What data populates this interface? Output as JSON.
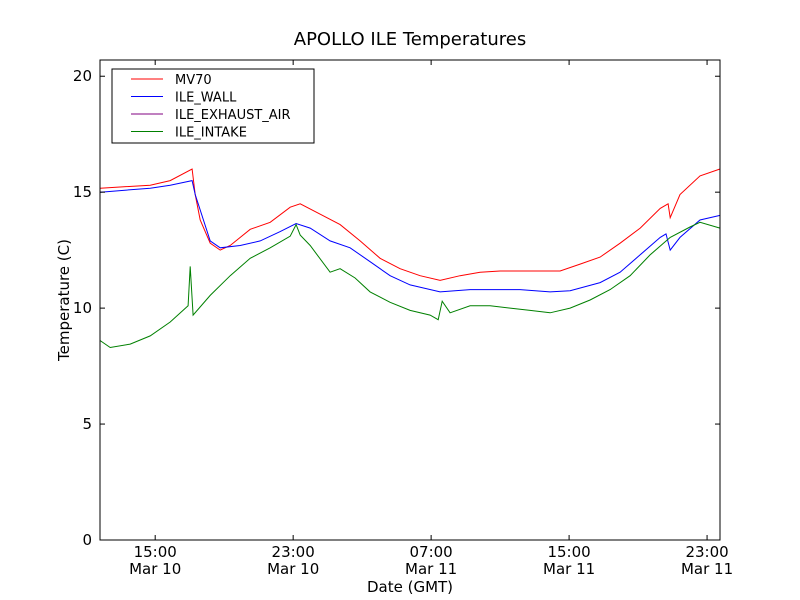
{
  "chart_data": {
    "type": "line",
    "title": "APOLLO ILE Temperatures",
    "xlabel": "Date (GMT)",
    "ylabel": "Temperature (C)",
    "x_units": "hours since Mar 10 00:00 GMT",
    "xlim": [
      11.8,
      47.75
    ],
    "ylim": [
      0,
      20.7
    ],
    "grid": false,
    "legend_position": "top-left",
    "yticks": [
      {
        "value": 0,
        "label": "0"
      },
      {
        "value": 5,
        "label": "5"
      },
      {
        "value": 10,
        "label": "10"
      },
      {
        "value": 15,
        "label": "15"
      },
      {
        "value": 20,
        "label": "20"
      }
    ],
    "xticks": [
      {
        "value": 15,
        "time": "15:00",
        "date": "Mar 10"
      },
      {
        "value": 23,
        "time": "23:00",
        "date": "Mar 10"
      },
      {
        "value": 31,
        "time": "07:00",
        "date": "Mar 11"
      },
      {
        "value": 39,
        "time": "15:00",
        "date": "Mar 11"
      },
      {
        "value": 47,
        "time": "23:00",
        "date": "Mar 11"
      }
    ],
    "series": [
      {
        "name": "MV70",
        "color": "#ff0000",
        "x": [
          11.81,
          14.71,
          15.87,
          17.14,
          17.32,
          17.61,
          18.19,
          18.77,
          19.35,
          20.51,
          21.67,
          22.83,
          23.41,
          24.57,
          25.72,
          26.88,
          28.04,
          29.2,
          30.36,
          31.52,
          32.68,
          33.84,
          35.0,
          36.16,
          37.32,
          38.48,
          39.64,
          40.8,
          41.96,
          43.12,
          44.28,
          44.74,
          44.86,
          45.43,
          46.59,
          47.75
        ],
        "y": [
          15.17,
          15.3,
          15.5,
          16.0,
          14.9,
          13.8,
          12.8,
          12.5,
          12.7,
          13.4,
          13.7,
          14.35,
          14.5,
          14.05,
          13.6,
          12.9,
          12.15,
          11.7,
          11.4,
          11.2,
          11.4,
          11.55,
          11.6,
          11.6,
          11.6,
          11.6,
          11.9,
          12.2,
          12.8,
          13.45,
          14.3,
          14.5,
          13.9,
          14.9,
          15.7,
          16.0
        ]
      },
      {
        "name": "ILE_WALL",
        "color": "#0000ff",
        "x": [
          11.81,
          14.71,
          15.87,
          17.14,
          17.32,
          18.19,
          18.77,
          19.93,
          21.09,
          22.25,
          23.17,
          23.99,
          25.14,
          26.3,
          27.46,
          28.62,
          29.78,
          31.52,
          33.26,
          34.42,
          36.16,
          37.9,
          39.06,
          40.8,
          41.96,
          43.12,
          44.28,
          44.62,
          44.86,
          45.43,
          46.59,
          47.75
        ],
        "y": [
          15.0,
          15.17,
          15.3,
          15.5,
          14.9,
          12.9,
          12.6,
          12.7,
          12.9,
          13.3,
          13.65,
          13.45,
          12.9,
          12.6,
          12.0,
          11.4,
          11.0,
          10.7,
          10.8,
          10.8,
          10.8,
          10.7,
          10.75,
          11.1,
          11.55,
          12.3,
          13.05,
          13.2,
          12.5,
          13.05,
          13.8,
          14.0
        ]
      },
      {
        "name": "ILE_EXHAUST_AIR",
        "color": "#800080",
        "x": [],
        "y": []
      },
      {
        "name": "ILE_INTAKE",
        "color": "#008000",
        "x": [
          11.81,
          12.39,
          13.55,
          14.71,
          15.87,
          16.91,
          17.03,
          17.2,
          18.19,
          19.35,
          20.51,
          21.67,
          22.83,
          23.17,
          23.41,
          23.99,
          25.14,
          25.72,
          26.59,
          27.46,
          28.62,
          29.78,
          30.94,
          31.41,
          31.64,
          32.1,
          33.26,
          34.42,
          35.58,
          36.74,
          37.9,
          39.06,
          40.22,
          41.38,
          42.54,
          43.7,
          44.86,
          46.01,
          46.59,
          47.75
        ],
        "y": [
          8.6,
          8.3,
          8.45,
          8.8,
          9.4,
          10.1,
          11.8,
          9.7,
          10.55,
          11.4,
          12.15,
          12.6,
          13.1,
          13.6,
          13.15,
          12.7,
          11.55,
          11.7,
          11.3,
          10.7,
          10.25,
          9.9,
          9.7,
          9.5,
          10.3,
          9.8,
          10.1,
          10.1,
          10.0,
          9.9,
          9.8,
          10.0,
          10.35,
          10.8,
          11.4,
          12.3,
          13.05,
          13.5,
          13.7,
          13.45
        ]
      }
    ]
  }
}
